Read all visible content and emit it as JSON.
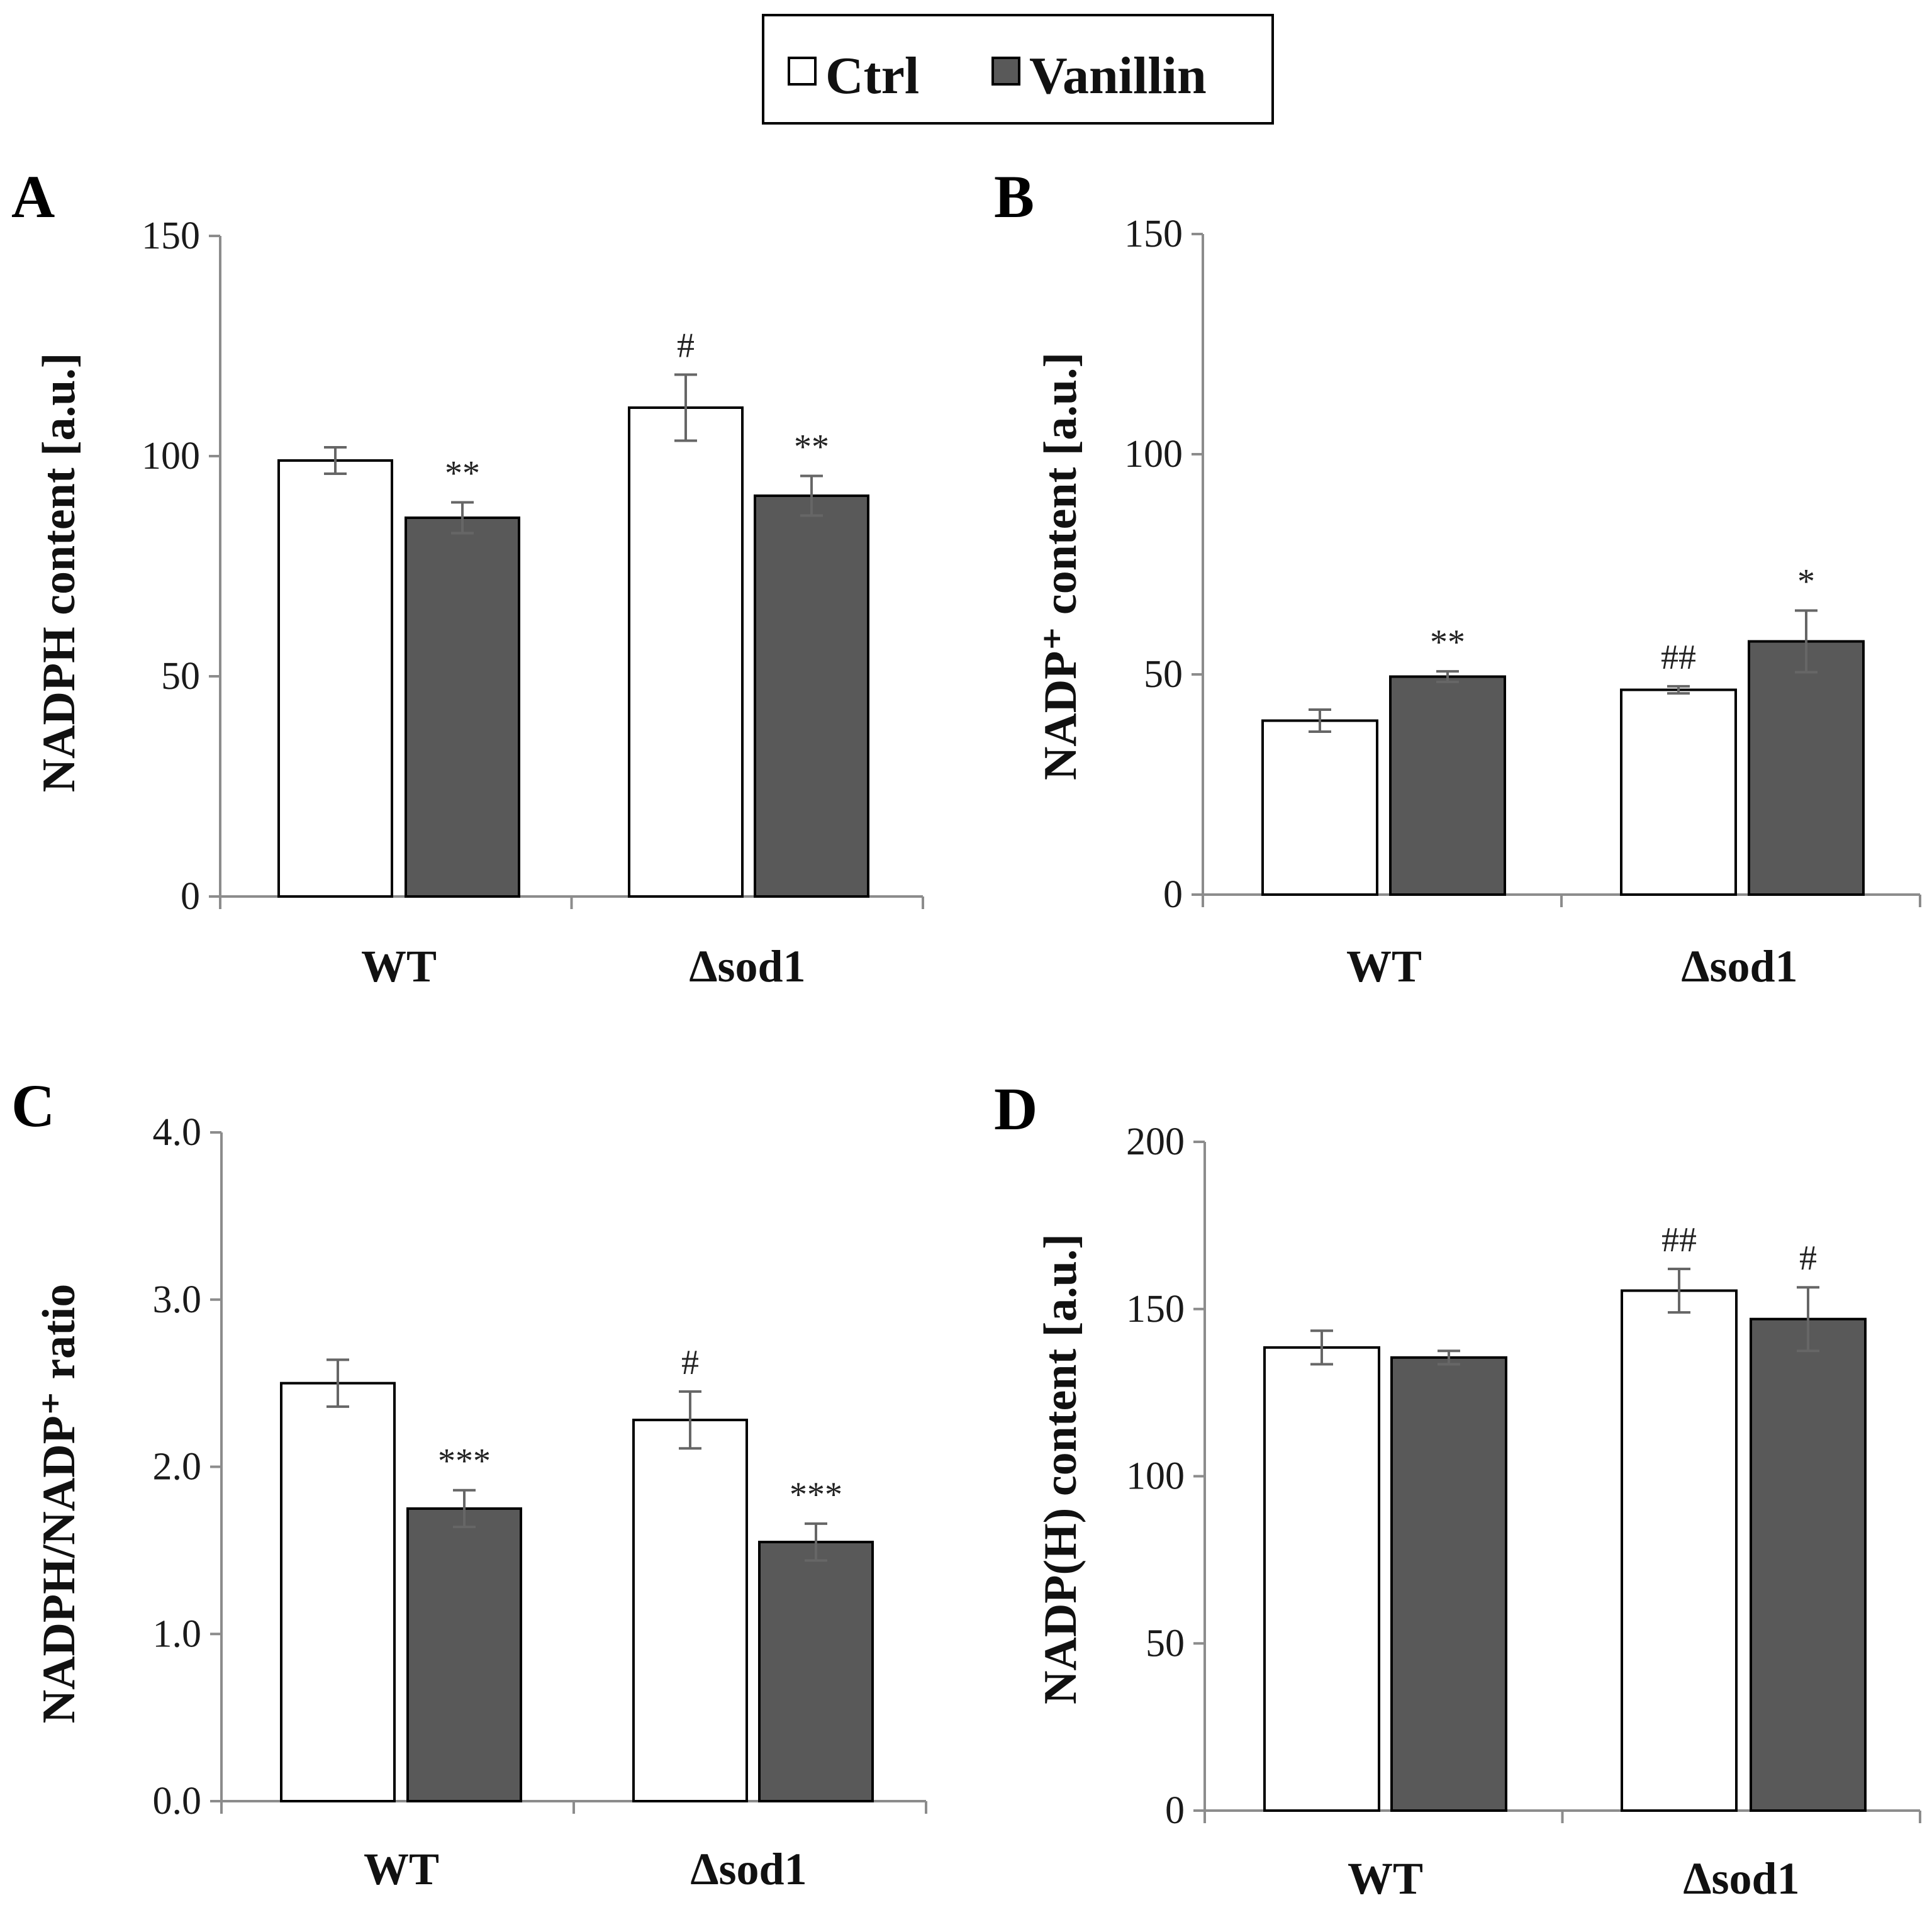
{
  "legend": {
    "ctrl": "Ctrl",
    "vanillin": "Vanillin"
  },
  "colors": {
    "ctrl": "#ffffff",
    "vanillin": "#595959",
    "axis": "#8c8c8c",
    "errorbar": "#666666",
    "bar_edge": "#000000"
  },
  "chart_data": [
    {
      "panel": "A",
      "type": "bar",
      "ylabel": "NADPH content [a.u.]",
      "categories": [
        "WT",
        "Δsod1"
      ],
      "ylim": [
        0,
        150
      ],
      "yticks": [
        "0",
        "50",
        "100",
        "150"
      ],
      "ytick_values": [
        0,
        50,
        100,
        150
      ],
      "series": [
        {
          "name": "Ctrl",
          "values": [
            99,
            111
          ],
          "errors": [
            3,
            7.5
          ],
          "sig": [
            "",
            "#"
          ]
        },
        {
          "name": "Vanillin",
          "values": [
            86,
            91
          ],
          "errors": [
            3.5,
            4.5
          ],
          "sig": [
            "**",
            "**"
          ]
        }
      ]
    },
    {
      "panel": "B",
      "type": "bar",
      "ylabel": "NADP⁺ content [a.u.]",
      "categories": [
        "WT",
        "Δsod1"
      ],
      "ylim": [
        0,
        150
      ],
      "yticks": [
        "0",
        "50",
        "100",
        "150"
      ],
      "ytick_values": [
        0,
        50,
        100,
        150
      ],
      "series": [
        {
          "name": "Ctrl",
          "values": [
            39.5,
            46.5
          ],
          "errors": [
            2.5,
            0.8
          ],
          "sig": [
            "",
            "##"
          ]
        },
        {
          "name": "Vanillin",
          "values": [
            49.5,
            57.5
          ],
          "errors": [
            1.2,
            7
          ],
          "sig": [
            "**",
            "*"
          ]
        }
      ]
    },
    {
      "panel": "C",
      "type": "bar",
      "ylabel": "NADPH/NADP⁺ ratio",
      "categories": [
        "WT",
        "Δsod1"
      ],
      "ylim": [
        0,
        4
      ],
      "yticks": [
        "0.0",
        "1.0",
        "2.0",
        "3.0",
        "4.0"
      ],
      "ytick_values": [
        0,
        1,
        2,
        3,
        4
      ],
      "series": [
        {
          "name": "Ctrl",
          "values": [
            2.5,
            2.28
          ],
          "errors": [
            0.14,
            0.17
          ],
          "sig": [
            "",
            "#"
          ]
        },
        {
          "name": "Vanillin",
          "values": [
            1.75,
            1.55
          ],
          "errors": [
            0.11,
            0.11
          ],
          "sig": [
            "***",
            "***"
          ]
        }
      ]
    },
    {
      "panel": "D",
      "type": "bar",
      "ylabel": "NADP(H) content [a.u.]",
      "categories": [
        "WT",
        "Δsod1"
      ],
      "ylim": [
        0,
        200
      ],
      "yticks": [
        "0",
        "50",
        "100",
        "150",
        "200"
      ],
      "ytick_values": [
        0,
        50,
        100,
        150,
        200
      ],
      "series": [
        {
          "name": "Ctrl",
          "values": [
            138.5,
            155.5
          ],
          "errors": [
            5,
            6.5
          ],
          "sig": [
            "",
            "##"
          ]
        },
        {
          "name": "Vanillin",
          "values": [
            135.5,
            147
          ],
          "errors": [
            2,
            9.5
          ],
          "sig": [
            "",
            "#"
          ]
        }
      ]
    }
  ]
}
